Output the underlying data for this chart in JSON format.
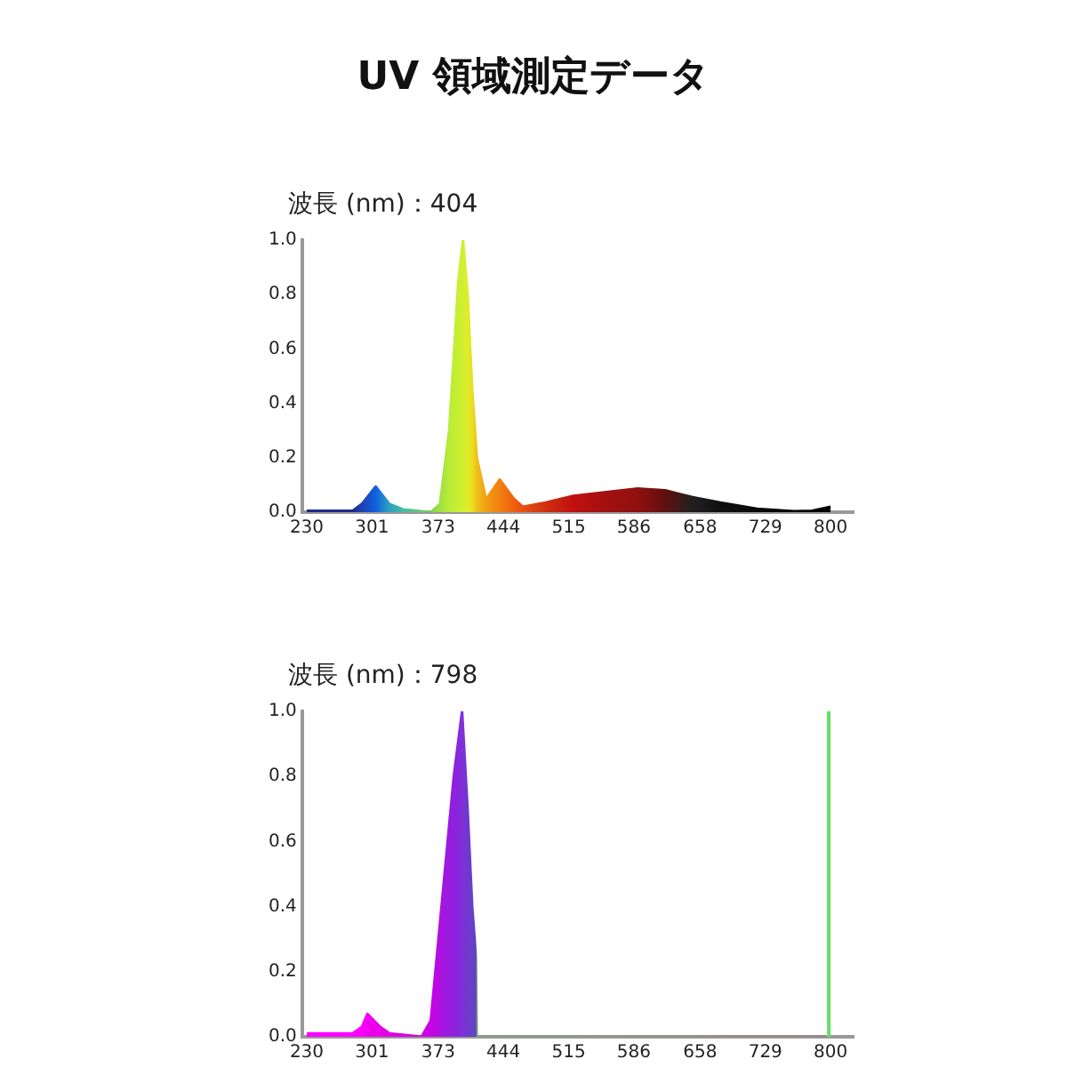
{
  "chart_data": [
    {
      "type": "area",
      "title": "UV 領域測定データ",
      "subtitle": "波長 (nm)：404",
      "x": [
        230,
        280,
        290,
        305,
        320,
        335,
        365,
        375,
        385,
        395,
        400,
        405,
        410,
        415,
        425,
        440,
        455,
        465,
        490,
        520,
        560,
        590,
        620,
        650,
        680,
        720,
        760,
        780,
        800
      ],
      "xlim": [
        225,
        825
      ],
      "xticks": [
        230,
        301,
        373,
        444,
        515,
        586,
        658,
        729,
        800
      ],
      "ylim": [
        0,
        1
      ],
      "yticks": [
        {
          "value": 0,
          "label": "0.0"
        },
        {
          "value": 0.2,
          "label": "0.2"
        },
        {
          "value": 0.4,
          "label": "0.4"
        },
        {
          "value": 0.6,
          "label": "0.6"
        },
        {
          "value": 0.8,
          "label": "0.8"
        },
        {
          "value": 1,
          "label": "1.0"
        }
      ],
      "grid": false,
      "legend": false,
      "marker": "none",
      "series": [
        {
          "values": [
            0.005,
            0.005,
            0.03,
            0.094,
            0.03,
            0.01,
            0,
            0.03,
            0.3,
            0.85,
            1.0,
            0.8,
            0.45,
            0.2,
            0.047,
            0.12,
            0.05,
            0.02,
            0.035,
            0.06,
            0.075,
            0.087,
            0.08,
            0.055,
            0.035,
            0.012,
            0.003,
            0.005,
            0.02
          ],
          "colors": [
            "#1f2a8a",
            "#1f2a8a",
            "#1f40b0",
            "#1060e0",
            "#30a0c0",
            "#40c0a0",
            "#80d060",
            "#a0e040",
            "#b8ec38",
            "#c8f030",
            "#d0f030",
            "#e0ec28",
            "#e8e020",
            "#f0c018",
            "#f0a014",
            "#f08010",
            "#f06010",
            "#e85010",
            "#d03010",
            "#c01010",
            "#a01010",
            "#901010",
            "#601010",
            "#202020",
            "#101010",
            "#080808",
            "#000000",
            "#000000",
            "#000000"
          ]
        }
      ]
    },
    {
      "type": "area",
      "subtitle": "波長 (nm)：798",
      "x": [
        230,
        280,
        290,
        296,
        310,
        320,
        355,
        365,
        375,
        380,
        390,
        399,
        405,
        410,
        414,
        415,
        800
      ],
      "xlim": [
        225,
        825
      ],
      "xticks": [
        230,
        301,
        373,
        444,
        515,
        586,
        658,
        729,
        800
      ],
      "ylim": [
        0,
        1
      ],
      "yticks": [
        {
          "value": 0,
          "label": "0.0"
        },
        {
          "value": 0.2,
          "label": "0.2"
        },
        {
          "value": 0.4,
          "label": "0.4"
        },
        {
          "value": 0.6,
          "label": "0.6"
        },
        {
          "value": 0.8,
          "label": "0.8"
        },
        {
          "value": 1,
          "label": "1.0"
        }
      ],
      "grid": false,
      "legend": false,
      "marker": "none",
      "series": [
        {
          "values": [
            0.01,
            0.01,
            0.03,
            0.07,
            0.03,
            0.01,
            0,
            0.05,
            0.35,
            0.5,
            0.8,
            1.0,
            0.7,
            0.4,
            0.25,
            0,
            0
          ],
          "colors": [
            "#ff00ff",
            "#ff00ff",
            "#ff00ff",
            "#f000f0",
            "#e800e8",
            "#e000e8",
            "#d000e8",
            "#c800e8",
            "#b010e0",
            "#a018e0",
            "#9020e0",
            "#8030d8",
            "#7038d0",
            "#6840c8",
            "#6040c0",
            "#80a080",
            "#a08080"
          ]
        }
      ],
      "ref_lines": [
        {
          "axis": "x",
          "value": 798,
          "color": "#66dd66"
        }
      ]
    }
  ]
}
